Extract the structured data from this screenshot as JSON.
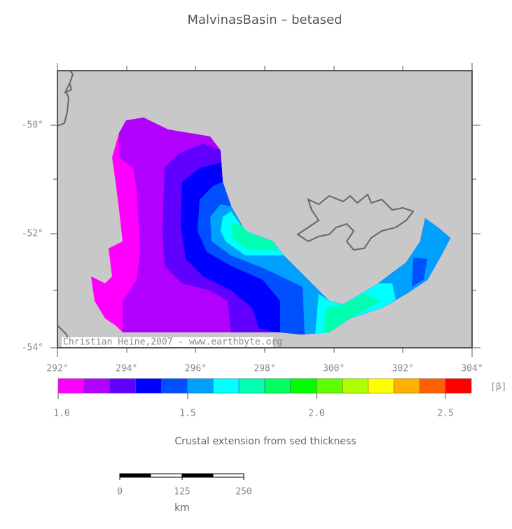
{
  "title": "MalvinasBasin – betased",
  "credit": "Christian Heine,2007 - www.earthbyte.org",
  "x_ticks": [
    "292°",
    "294°",
    "296°",
    "298°",
    "300°",
    "302°",
    "304°"
  ],
  "y_ticks": [
    "-50°",
    "-52°",
    "-54°"
  ],
  "colorbar": {
    "colors": [
      "#ff00ff",
      "#b000ff",
      "#6000ff",
      "#0000ff",
      "#0050ff",
      "#00a0ff",
      "#00ffff",
      "#00ffb0",
      "#00ff60",
      "#00ff00",
      "#60ff00",
      "#b0ff00",
      "#ffff00",
      "#ffb000",
      "#ff6000",
      "#ff0000"
    ],
    "ticks": [
      "1.0",
      "1.5",
      "2.0",
      "2.5"
    ],
    "unit": "[β]",
    "caption": "Crustal extension from sed thickness"
  },
  "scale": {
    "labels": [
      "0",
      "125",
      "250"
    ],
    "unit": "km"
  }
}
